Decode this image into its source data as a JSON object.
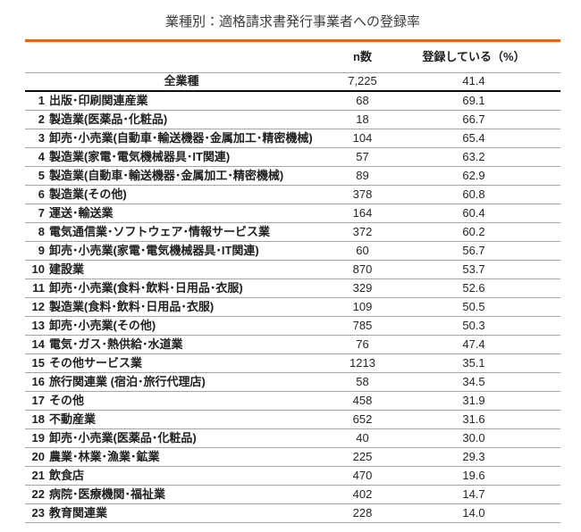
{
  "title": "業種別：適格請求書発行事業者への登録率",
  "colors": {
    "accent_orange": "#e8641a",
    "separator_gray": "#a6a6a6",
    "total_separator_black": "#0d0d0d",
    "text": "#1f1f1f"
  },
  "chart_data": {
    "type": "table",
    "title": "業種別：適格請求書発行事業者への登録率",
    "columns": [
      "",
      "n数",
      "登録している（%）"
    ],
    "total": {
      "label": "全業種",
      "n": "7,225",
      "pct": "41.4"
    },
    "rows": [
      {
        "rank": 1,
        "label": "出版･印刷関連産業",
        "n": 68,
        "pct": "69.1"
      },
      {
        "rank": 2,
        "label": "製造業(医薬品･化粧品)",
        "n": 18,
        "pct": "66.7"
      },
      {
        "rank": 3,
        "label": "卸売･小売業(自動車･輸送機器･金属加工･精密機械)",
        "n": 104,
        "pct": "65.4"
      },
      {
        "rank": 4,
        "label": "製造業(家電･電気機械器具･IT関連)",
        "n": 57,
        "pct": "63.2"
      },
      {
        "rank": 5,
        "label": "製造業(自動車･輸送機器･金属加工･精密機械)",
        "n": 89,
        "pct": "62.9"
      },
      {
        "rank": 6,
        "label": "製造業(その他)",
        "n": 378,
        "pct": "60.8"
      },
      {
        "rank": 7,
        "label": "運送･輸送業",
        "n": 164,
        "pct": "60.4"
      },
      {
        "rank": 8,
        "label": "電気通信業･ソフトウェア･情報サービス業",
        "n": 372,
        "pct": "60.2"
      },
      {
        "rank": 9,
        "label": "卸売･小売業(家電･電気機械器具･IT関連)",
        "n": 60,
        "pct": "56.7"
      },
      {
        "rank": 10,
        "label": "建設業",
        "n": 870,
        "pct": "53.7"
      },
      {
        "rank": 11,
        "label": "卸売･小売業(食料･飲料･日用品･衣服)",
        "n": 329,
        "pct": "52.6"
      },
      {
        "rank": 12,
        "label": "製造業(食料･飲料･日用品･衣服)",
        "n": 109,
        "pct": "50.5"
      },
      {
        "rank": 13,
        "label": "卸売･小売業(その他)",
        "n": 785,
        "pct": "50.3"
      },
      {
        "rank": 14,
        "label": "電気･ガス･熱供給･水道業",
        "n": 76,
        "pct": "47.4"
      },
      {
        "rank": 15,
        "label": "その他サービス業",
        "n": 1213,
        "pct": "35.1"
      },
      {
        "rank": 16,
        "label": "旅行関連業 (宿泊･旅行代理店)",
        "n": 58,
        "pct": "34.5"
      },
      {
        "rank": 17,
        "label": "その他",
        "n": 458,
        "pct": "31.9"
      },
      {
        "rank": 18,
        "label": "不動産業",
        "n": 652,
        "pct": "31.6"
      },
      {
        "rank": 19,
        "label": "卸売･小売業(医薬品･化粧品)",
        "n": 40,
        "pct": "30.0"
      },
      {
        "rank": 20,
        "label": "農業･林業･漁業･鉱業",
        "n": 225,
        "pct": "29.3"
      },
      {
        "rank": 21,
        "label": "飲食店",
        "n": 470,
        "pct": "19.6"
      },
      {
        "rank": 22,
        "label": "病院･医療機関･福祉業",
        "n": 402,
        "pct": "14.7"
      },
      {
        "rank": 23,
        "label": "教育関連業",
        "n": 228,
        "pct": "14.0"
      }
    ]
  }
}
